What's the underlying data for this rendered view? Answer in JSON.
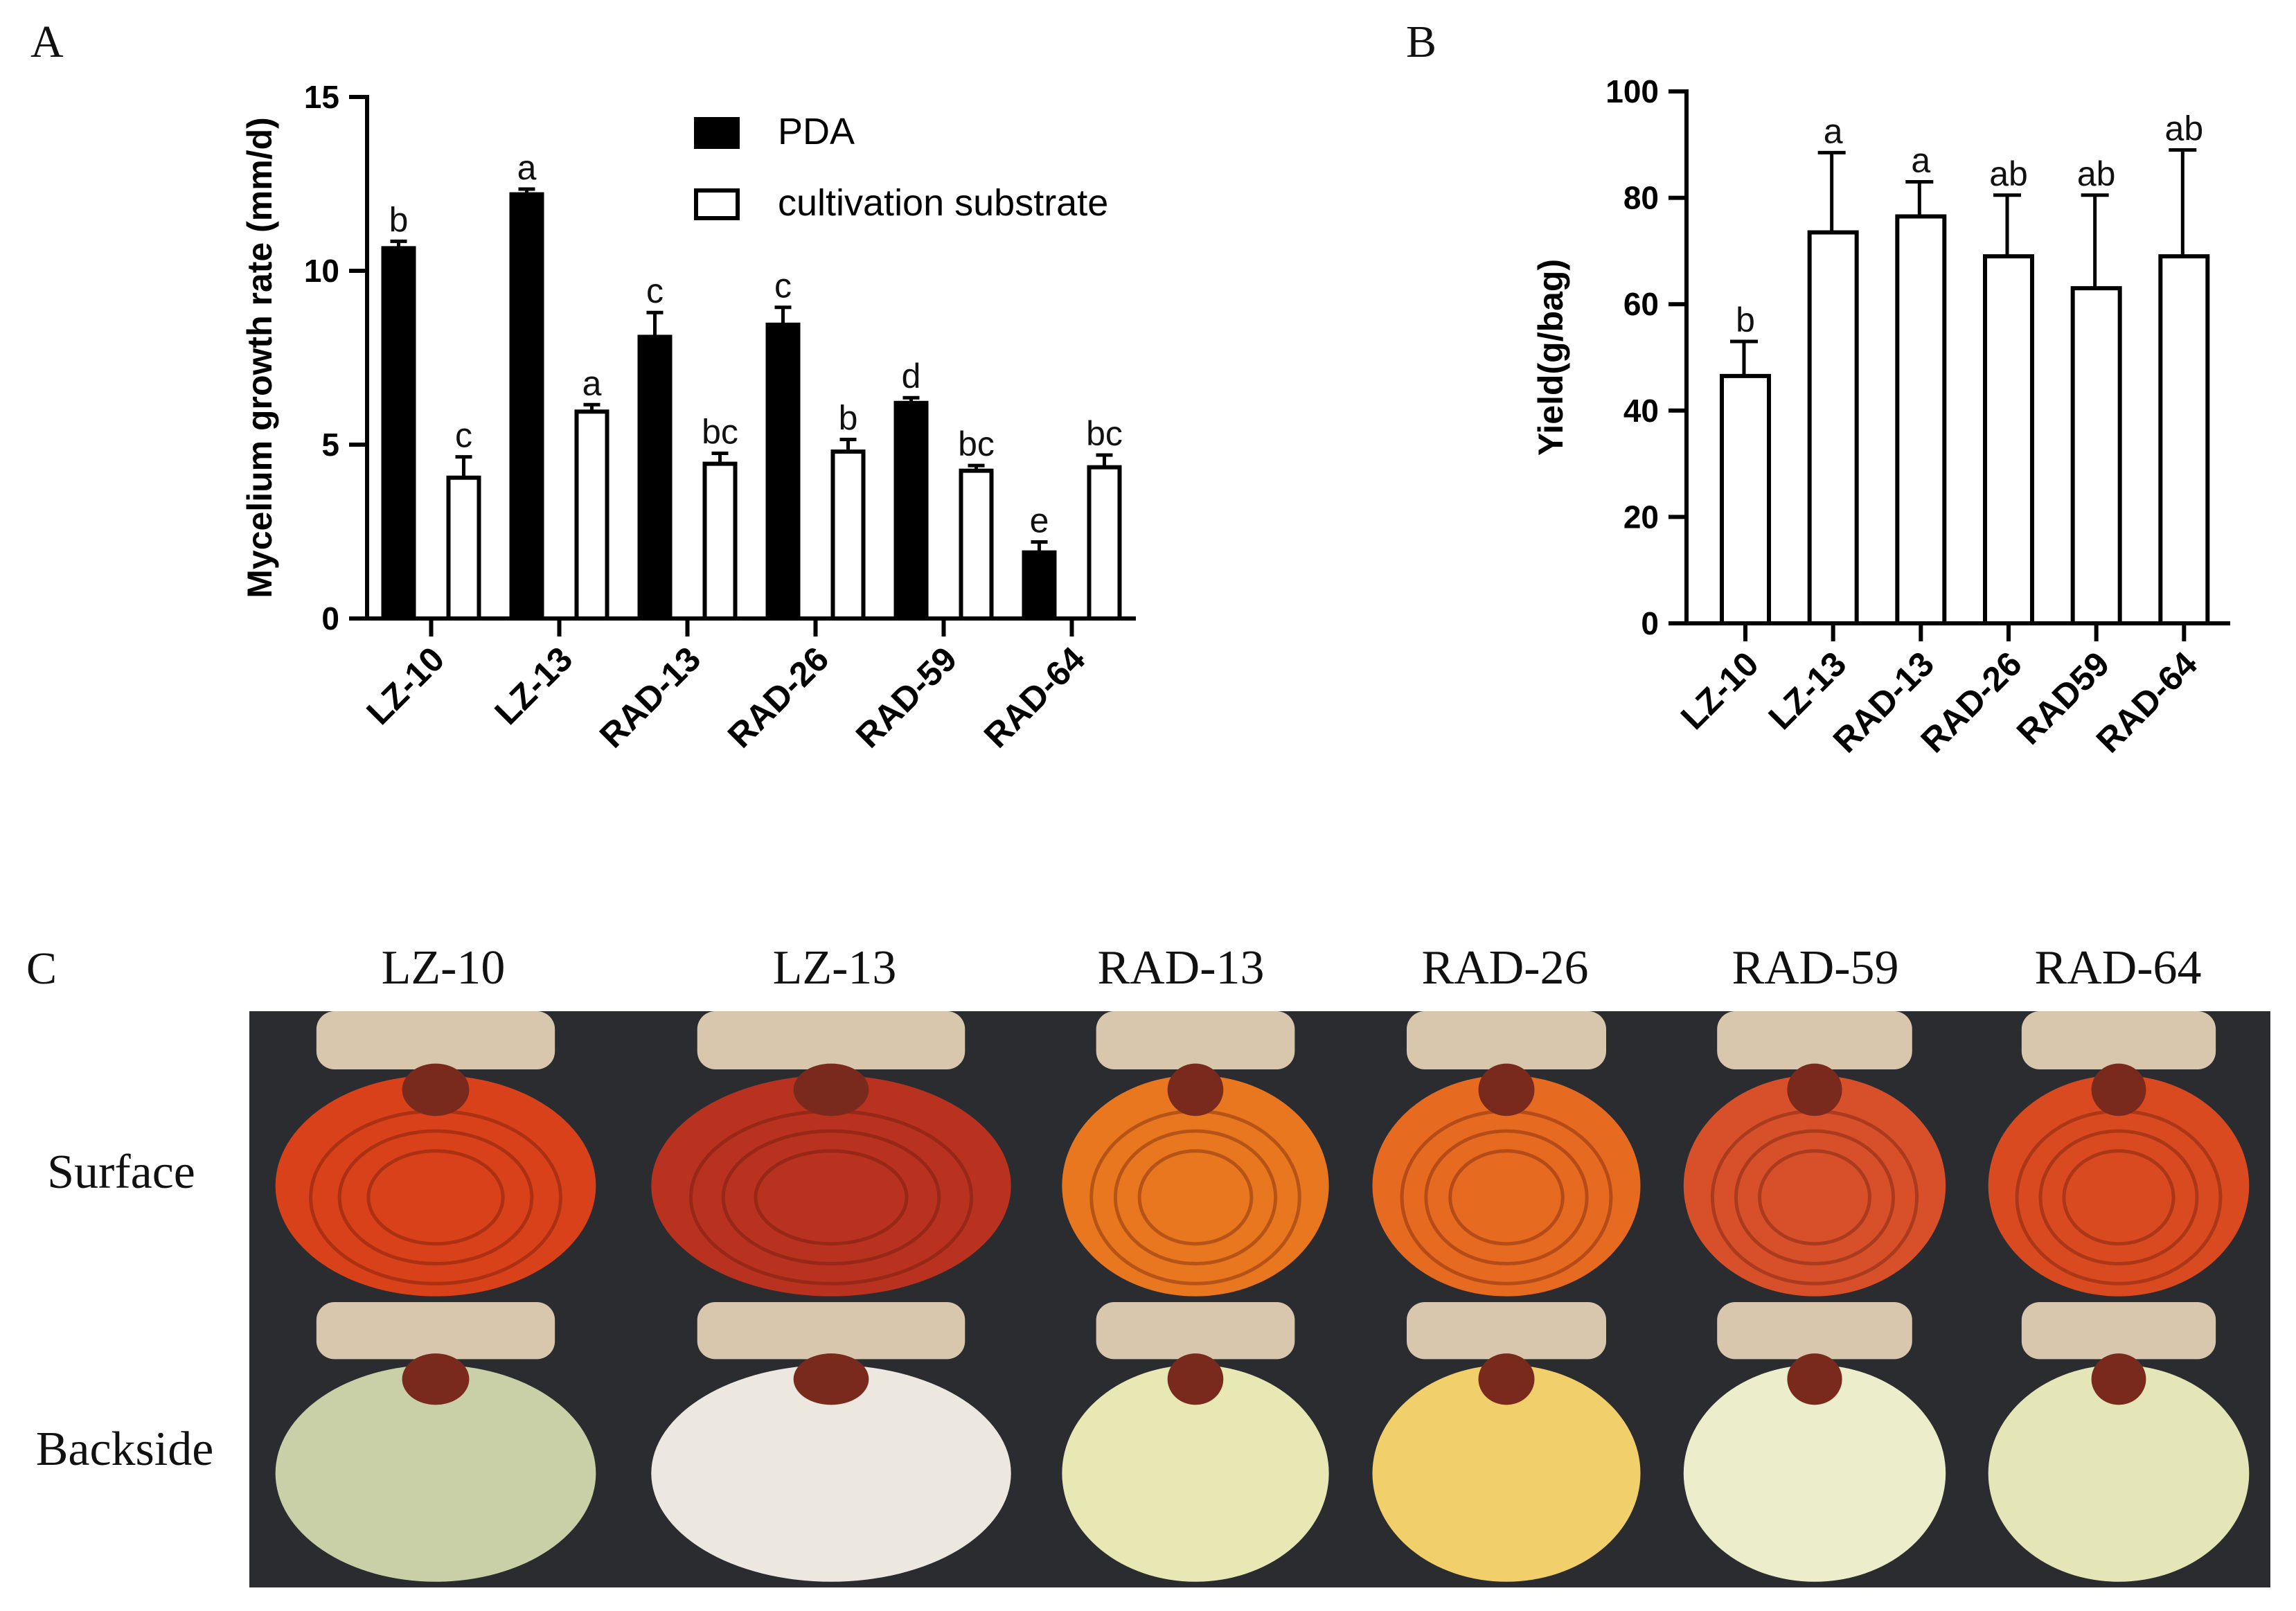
{
  "panels": {
    "a_label": "A",
    "b_label": "B",
    "c_label": "C"
  },
  "chart_data": [
    {
      "type": "bar",
      "id": "A",
      "title": "",
      "ylabel": "Mycelium growth rate (mm/d)",
      "xlabel": "",
      "ylim": [
        0,
        15
      ],
      "yticks": [
        "0",
        "5",
        "10",
        "15"
      ],
      "categories": [
        "LZ-10",
        "LZ-13",
        "RAD-13",
        "RAD-26",
        "RAD-59",
        "RAD-64"
      ],
      "legend_position": "top-right",
      "series": [
        {
          "name": "PDA",
          "style": "filled",
          "values": [
            10.65,
            12.2,
            8.1,
            8.45,
            6.2,
            1.9
          ],
          "errors": [
            0.2,
            0.15,
            0.7,
            0.5,
            0.15,
            0.3
          ],
          "labels": [
            "b",
            "a",
            "c",
            "c",
            "d",
            "e"
          ]
        },
        {
          "name": "cultivation substrate",
          "style": "open",
          "values": [
            4.05,
            5.95,
            4.45,
            4.8,
            4.25,
            4.35
          ],
          "errors": [
            0.6,
            0.2,
            0.3,
            0.35,
            0.15,
            0.35
          ],
          "labels": [
            "c",
            "a",
            "bc",
            "b",
            "bc",
            "bc"
          ]
        }
      ]
    },
    {
      "type": "bar",
      "id": "B",
      "title": "",
      "ylabel": "Yield(g/bag)",
      "xlabel": "",
      "ylim": [
        0,
        100
      ],
      "yticks": [
        "0",
        "20",
        "40",
        "60",
        "80",
        "100"
      ],
      "categories": [
        "LZ-10",
        "LZ-13",
        "RAD-13",
        "RAD-26",
        "RAD59",
        "RAD-64"
      ],
      "series": [
        {
          "name": "Yield",
          "style": "open",
          "values": [
            46.5,
            73.5,
            76.5,
            69.0,
            63.0,
            69.0
          ],
          "errors": [
            6.5,
            15.0,
            6.5,
            11.5,
            17.5,
            20.0
          ],
          "labels": [
            "b",
            "a",
            "a",
            "ab",
            "ab",
            "ab"
          ]
        }
      ]
    }
  ],
  "photo_panel": {
    "columns": [
      "LZ-10",
      "LZ-13",
      "RAD-13",
      "RAD-26",
      "RAD-59",
      "RAD-64"
    ],
    "rows": [
      "Surface",
      "Backside"
    ],
    "surface_colors": [
      "#d9411a",
      "#b8321f",
      "#e8771f",
      "#e66a20",
      "#d8502a",
      "#d94a20"
    ],
    "backside_colors": [
      "#c9cfa6",
      "#ece8e0",
      "#e7e8b4",
      "#f1cf6a",
      "#eceecb",
      "#e4e6b7"
    ],
    "substrate_color": "#d8c6ad",
    "stalk_color": "#7a2a1d"
  }
}
